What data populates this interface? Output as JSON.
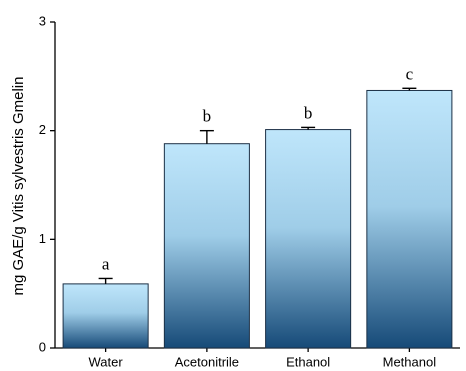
{
  "chart_data": {
    "type": "bar",
    "title": "",
    "xlabel": "",
    "ylabel": "mg GAE/g Vitis sylvestris Gmelin",
    "categories": [
      "Water",
      "Acetonitrile",
      "Ethanol",
      "Methanol"
    ],
    "values": [
      0.59,
      1.88,
      2.01,
      2.37
    ],
    "errors": [
      0.05,
      0.12,
      0.02,
      0.02
    ],
    "significance_labels": [
      "a",
      "b",
      "b",
      "c"
    ],
    "ylim": [
      0,
      3
    ],
    "yticks": [
      "0",
      "1",
      "2",
      "3"
    ],
    "grid": false,
    "bar_gradient": {
      "top": "#bfe6fb",
      "bottom": "#164a78"
    },
    "error_bar_color": "#000000"
  }
}
